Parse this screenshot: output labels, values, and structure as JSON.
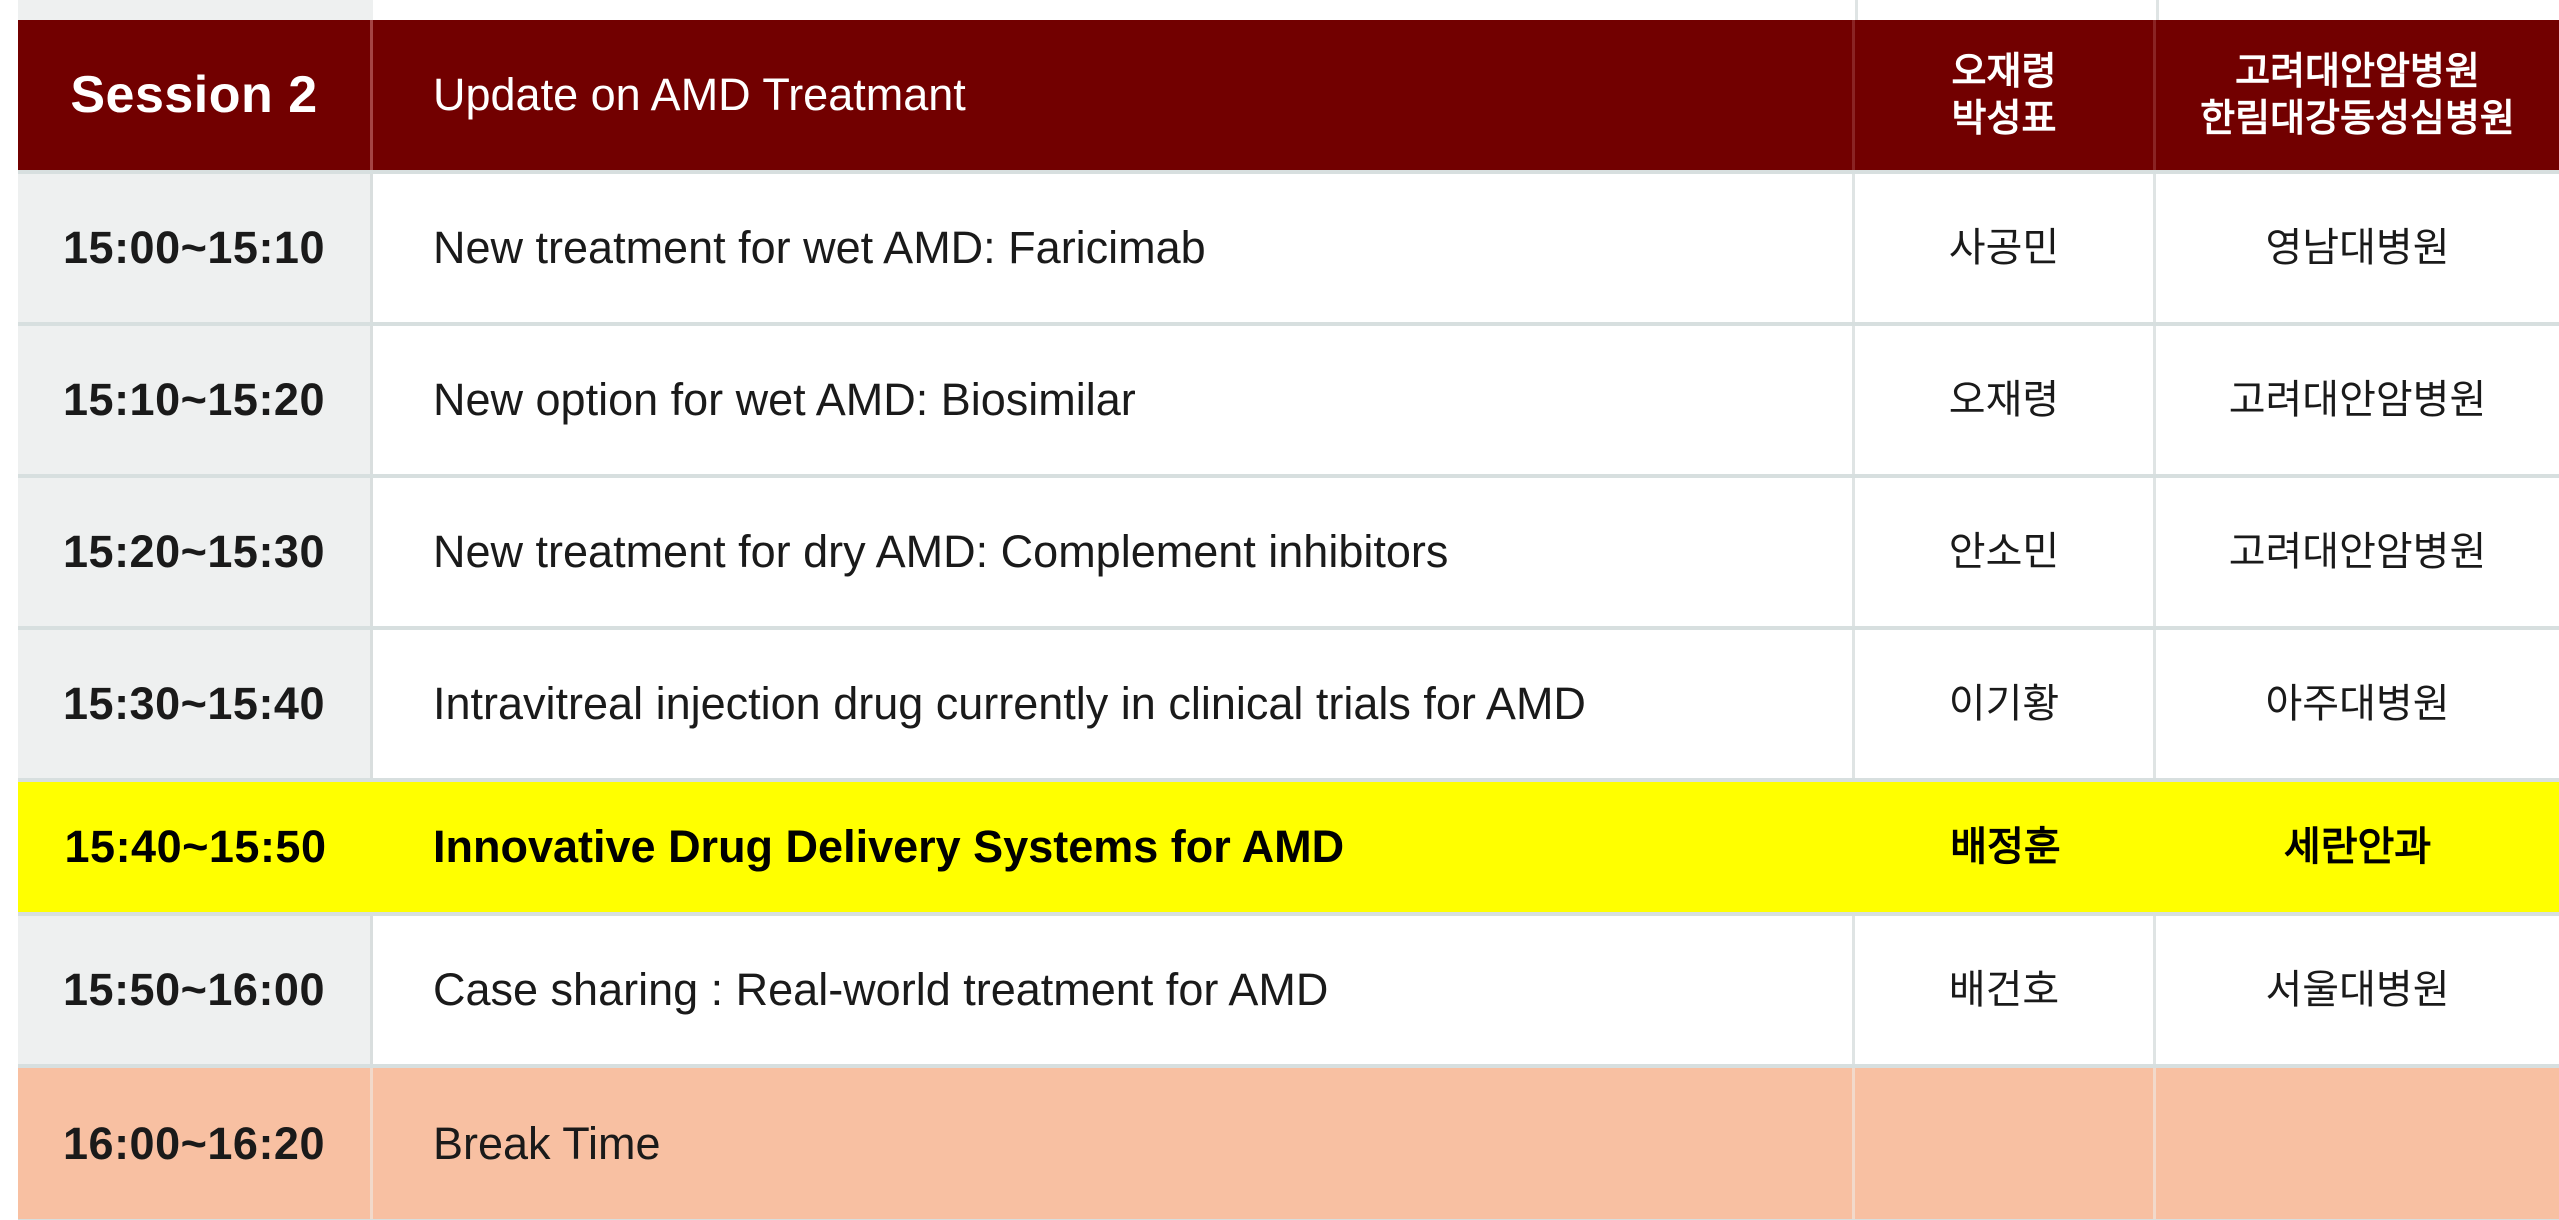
{
  "header": {
    "session": "Session 2",
    "title": "Update on AMD Treatmant",
    "moderators": [
      "오재령",
      "박성표"
    ],
    "moderator_affiliations": [
      "고려대안암병원",
      "한림대강동성심병원"
    ]
  },
  "rows": [
    {
      "time": "15:00~15:10",
      "title": "New treatment for wet AMD: Faricimab",
      "speaker": "사공민",
      "affiliation": "영남대병원"
    },
    {
      "time": "15:10~15:20",
      "title": "New option for wet AMD: Biosimilar",
      "speaker": "오재령",
      "affiliation": "고려대안암병원"
    },
    {
      "time": "15:20~15:30",
      "title": "New treatment for dry AMD: Complement inhibitors",
      "speaker": "안소민",
      "affiliation": "고려대안암병원"
    },
    {
      "time": "15:30~15:40",
      "title": "Intravitreal injection drug currently in clinical trials for AMD",
      "speaker": "이기황",
      "affiliation": "아주대병원"
    },
    {
      "time": "15:40~15:50",
      "title": "Innovative Drug Delivery Systems for AMD",
      "speaker": "배정훈",
      "affiliation": "세란안과",
      "highlighted": true
    },
    {
      "time": "15:50~16:00",
      "title": "Case sharing : Real-world treatment for AMD",
      "speaker": "배건호",
      "affiliation": "서울대병원"
    }
  ],
  "break": {
    "time": "16:00~16:20",
    "title": "Break Time"
  },
  "colors": {
    "header_bg": "#720000",
    "highlight_bg": "#ffff00",
    "break_bg": "#f8c0a2",
    "time_column_bg": "#eef0f0"
  }
}
